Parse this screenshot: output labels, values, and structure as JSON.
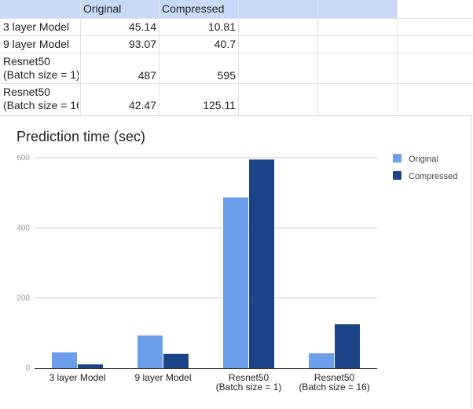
{
  "table": {
    "headers": [
      "Original",
      "Compressed"
    ],
    "rows": [
      {
        "label_lines": [
          "3 layer Model"
        ],
        "original": "45.14",
        "compressed": "10.81"
      },
      {
        "label_lines": [
          "9 layer Model"
        ],
        "original": "93.07",
        "compressed": "40.7"
      },
      {
        "label_lines": [
          "Resnet50",
          "(Batch size = 1)"
        ],
        "original": "487",
        "compressed": "595"
      },
      {
        "label_lines": [
          "Resnet50",
          "(Batch size = 16"
        ],
        "original": "42.47",
        "compressed": "125.11"
      }
    ]
  },
  "chart_data": {
    "type": "bar",
    "title": "Prediction time (sec)",
    "categories": [
      [
        "3 layer Model"
      ],
      [
        "9 layer Model"
      ],
      [
        "Resnet50",
        "(Batch size = 1)"
      ],
      [
        "Resnet50",
        "(Batch size = 16)"
      ]
    ],
    "series": [
      {
        "name": "Original",
        "color": "#6d9eeb",
        "values": [
          45.14,
          93.07,
          487,
          42.47
        ]
      },
      {
        "name": "Compressed",
        "color": "#1c4587",
        "values": [
          10.81,
          40.7,
          595,
          125.11
        ]
      }
    ],
    "ylim": [
      0,
      600
    ],
    "yticks": [
      "0",
      "200",
      "400",
      "600"
    ],
    "grid": true,
    "legend_position": "right"
  }
}
